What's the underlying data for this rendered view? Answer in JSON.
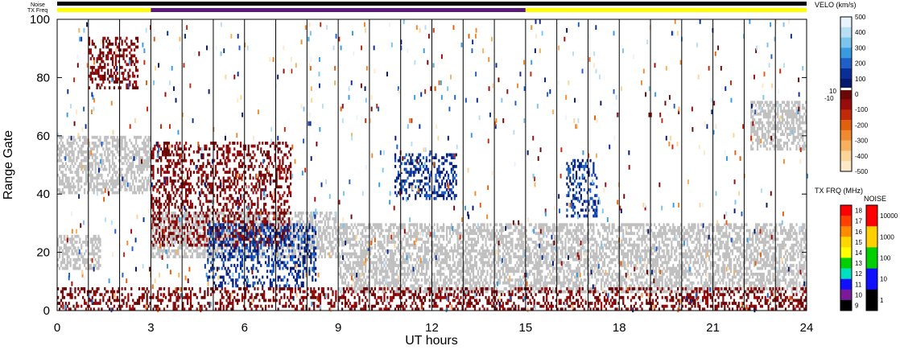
{
  "chart_data": {
    "type": "heatmap",
    "title": "",
    "xlabel": "UT hours",
    "ylabel": "Range Gate",
    "xlim": [
      0,
      24
    ],
    "ylim": [
      0,
      100
    ],
    "x_ticks": [
      "0",
      "3",
      "6",
      "9",
      "12",
      "15",
      "18",
      "21",
      "24"
    ],
    "y_ticks": [
      "0",
      "20",
      "40",
      "60",
      "80",
      "100"
    ],
    "grid": "vertical lines every 1 UT hour",
    "ground_scatter_color": "#c0c0c0",
    "status_bars": {
      "noise_label": "Noise",
      "txfreq_label": "TX Freq",
      "noise_color": "#000000",
      "txfreq_segments": [
        {
          "start": 0,
          "end": 3,
          "color": "#ffff00"
        },
        {
          "start": 3,
          "end": 15,
          "color": "#5a1a7a"
        },
        {
          "start": 15,
          "end": 24,
          "color": "#ffff00"
        }
      ]
    },
    "velocity_colorbar": {
      "title": "VELO (km/s)",
      "ticks": [
        "500",
        "400",
        "300",
        "200",
        "100",
        "0",
        "-100",
        "-200",
        "-300",
        "-400",
        "-500"
      ],
      "zero_band_labels": [
        "10",
        "-10"
      ],
      "colors_top_to_bottom": [
        "#e8f4fb",
        "#b8def4",
        "#7cc4ec",
        "#3a9ae0",
        "#1e5fc8",
        "#0b2e96",
        "#07196a",
        "#6a0808",
        "#980c0c",
        "#c02a0a",
        "#e06010",
        "#f08a30",
        "#f7b060",
        "#fbd49a",
        "#fde8c8"
      ]
    },
    "txfreq_colorbar": {
      "title": "TX FRQ (MHz)",
      "ticks": [
        "18",
        "17",
        "16",
        "15",
        "14",
        "13",
        "12",
        "11",
        "10",
        "9"
      ],
      "colors_top_to_bottom": [
        "#ff0000",
        "#ff4000",
        "#ff8c00",
        "#ffd700",
        "#ffff00",
        "#00d000",
        "#00e0c0",
        "#1010ff",
        "#7a1a9a",
        "#000000"
      ]
    },
    "noise_colorbar": {
      "title": "NOISE",
      "ticks": [
        "10000",
        "1000",
        "100",
        "10",
        "1"
      ],
      "colors_top_to_bottom": [
        "#ff0000",
        "#ffd000",
        "#00d000",
        "#1010ff",
        "#000000"
      ]
    },
    "features": [
      {
        "name": "ground scatter",
        "time_range_ut": [
          0.0,
          3.0
        ],
        "gate_range": [
          40,
          60
        ]
      },
      {
        "name": "ground scatter",
        "time_range_ut": [
          0.0,
          1.4
        ],
        "gate_range": [
          14,
          26
        ]
      },
      {
        "name": "ground scatter",
        "time_range_ut": [
          3.0,
          9.0
        ],
        "gate_range": [
          18,
          34
        ]
      },
      {
        "name": "ground scatter",
        "time_range_ut": [
          9.0,
          24.0
        ],
        "gate_range": [
          6,
          30
        ]
      },
      {
        "name": "ground scatter",
        "time_range_ut": [
          22.2,
          24.0
        ],
        "gate_range": [
          55,
          72
        ]
      },
      {
        "name": "negative velocity (away)",
        "time_range_ut": [
          0.0,
          24.0
        ],
        "gate_range": [
          0,
          8
        ]
      },
      {
        "name": "negative velocity (away)",
        "time_range_ut": [
          3.0,
          7.5
        ],
        "gate_range": [
          22,
          58
        ]
      },
      {
        "name": "negative velocity (away)",
        "time_range_ut": [
          1.0,
          2.6
        ],
        "gate_range": [
          76,
          94
        ]
      },
      {
        "name": "positive velocity (toward)",
        "time_range_ut": [
          4.8,
          8.3
        ],
        "gate_range": [
          8,
          30
        ]
      },
      {
        "name": "positive velocity (toward)",
        "time_range_ut": [
          10.8,
          12.8
        ],
        "gate_range": [
          38,
          54
        ]
      },
      {
        "name": "positive velocity (toward)",
        "time_range_ut": [
          16.3,
          17.3
        ],
        "gate_range": [
          32,
          52
        ]
      }
    ]
  }
}
